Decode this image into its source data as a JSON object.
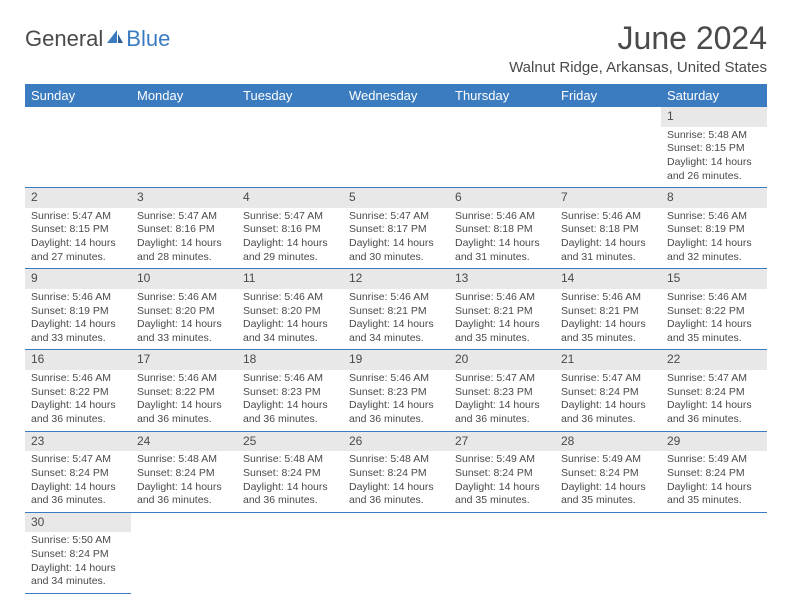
{
  "brand": {
    "part1": "General",
    "part2": "Blue"
  },
  "title": "June 2024",
  "location": "Walnut Ridge, Arkansas, United States",
  "header_color": "#3b7bbf",
  "daynum_bg": "#e8e8e8",
  "weekdays": [
    "Sunday",
    "Monday",
    "Tuesday",
    "Wednesday",
    "Thursday",
    "Friday",
    "Saturday"
  ],
  "weeks": [
    [
      null,
      null,
      null,
      null,
      null,
      null,
      {
        "n": "1",
        "sr": "Sunrise: 5:48 AM",
        "ss": "Sunset: 8:15 PM",
        "dl": "Daylight: 14 hours and 26 minutes."
      }
    ],
    [
      {
        "n": "2",
        "sr": "Sunrise: 5:47 AM",
        "ss": "Sunset: 8:15 PM",
        "dl": "Daylight: 14 hours and 27 minutes."
      },
      {
        "n": "3",
        "sr": "Sunrise: 5:47 AM",
        "ss": "Sunset: 8:16 PM",
        "dl": "Daylight: 14 hours and 28 minutes."
      },
      {
        "n": "4",
        "sr": "Sunrise: 5:47 AM",
        "ss": "Sunset: 8:16 PM",
        "dl": "Daylight: 14 hours and 29 minutes."
      },
      {
        "n": "5",
        "sr": "Sunrise: 5:47 AM",
        "ss": "Sunset: 8:17 PM",
        "dl": "Daylight: 14 hours and 30 minutes."
      },
      {
        "n": "6",
        "sr": "Sunrise: 5:46 AM",
        "ss": "Sunset: 8:18 PM",
        "dl": "Daylight: 14 hours and 31 minutes."
      },
      {
        "n": "7",
        "sr": "Sunrise: 5:46 AM",
        "ss": "Sunset: 8:18 PM",
        "dl": "Daylight: 14 hours and 31 minutes."
      },
      {
        "n": "8",
        "sr": "Sunrise: 5:46 AM",
        "ss": "Sunset: 8:19 PM",
        "dl": "Daylight: 14 hours and 32 minutes."
      }
    ],
    [
      {
        "n": "9",
        "sr": "Sunrise: 5:46 AM",
        "ss": "Sunset: 8:19 PM",
        "dl": "Daylight: 14 hours and 33 minutes."
      },
      {
        "n": "10",
        "sr": "Sunrise: 5:46 AM",
        "ss": "Sunset: 8:20 PM",
        "dl": "Daylight: 14 hours and 33 minutes."
      },
      {
        "n": "11",
        "sr": "Sunrise: 5:46 AM",
        "ss": "Sunset: 8:20 PM",
        "dl": "Daylight: 14 hours and 34 minutes."
      },
      {
        "n": "12",
        "sr": "Sunrise: 5:46 AM",
        "ss": "Sunset: 8:21 PM",
        "dl": "Daylight: 14 hours and 34 minutes."
      },
      {
        "n": "13",
        "sr": "Sunrise: 5:46 AM",
        "ss": "Sunset: 8:21 PM",
        "dl": "Daylight: 14 hours and 35 minutes."
      },
      {
        "n": "14",
        "sr": "Sunrise: 5:46 AM",
        "ss": "Sunset: 8:21 PM",
        "dl": "Daylight: 14 hours and 35 minutes."
      },
      {
        "n": "15",
        "sr": "Sunrise: 5:46 AM",
        "ss": "Sunset: 8:22 PM",
        "dl": "Daylight: 14 hours and 35 minutes."
      }
    ],
    [
      {
        "n": "16",
        "sr": "Sunrise: 5:46 AM",
        "ss": "Sunset: 8:22 PM",
        "dl": "Daylight: 14 hours and 36 minutes."
      },
      {
        "n": "17",
        "sr": "Sunrise: 5:46 AM",
        "ss": "Sunset: 8:22 PM",
        "dl": "Daylight: 14 hours and 36 minutes."
      },
      {
        "n": "18",
        "sr": "Sunrise: 5:46 AM",
        "ss": "Sunset: 8:23 PM",
        "dl": "Daylight: 14 hours and 36 minutes."
      },
      {
        "n": "19",
        "sr": "Sunrise: 5:46 AM",
        "ss": "Sunset: 8:23 PM",
        "dl": "Daylight: 14 hours and 36 minutes."
      },
      {
        "n": "20",
        "sr": "Sunrise: 5:47 AM",
        "ss": "Sunset: 8:23 PM",
        "dl": "Daylight: 14 hours and 36 minutes."
      },
      {
        "n": "21",
        "sr": "Sunrise: 5:47 AM",
        "ss": "Sunset: 8:24 PM",
        "dl": "Daylight: 14 hours and 36 minutes."
      },
      {
        "n": "22",
        "sr": "Sunrise: 5:47 AM",
        "ss": "Sunset: 8:24 PM",
        "dl": "Daylight: 14 hours and 36 minutes."
      }
    ],
    [
      {
        "n": "23",
        "sr": "Sunrise: 5:47 AM",
        "ss": "Sunset: 8:24 PM",
        "dl": "Daylight: 14 hours and 36 minutes."
      },
      {
        "n": "24",
        "sr": "Sunrise: 5:48 AM",
        "ss": "Sunset: 8:24 PM",
        "dl": "Daylight: 14 hours and 36 minutes."
      },
      {
        "n": "25",
        "sr": "Sunrise: 5:48 AM",
        "ss": "Sunset: 8:24 PM",
        "dl": "Daylight: 14 hours and 36 minutes."
      },
      {
        "n": "26",
        "sr": "Sunrise: 5:48 AM",
        "ss": "Sunset: 8:24 PM",
        "dl": "Daylight: 14 hours and 36 minutes."
      },
      {
        "n": "27",
        "sr": "Sunrise: 5:49 AM",
        "ss": "Sunset: 8:24 PM",
        "dl": "Daylight: 14 hours and 35 minutes."
      },
      {
        "n": "28",
        "sr": "Sunrise: 5:49 AM",
        "ss": "Sunset: 8:24 PM",
        "dl": "Daylight: 14 hours and 35 minutes."
      },
      {
        "n": "29",
        "sr": "Sunrise: 5:49 AM",
        "ss": "Sunset: 8:24 PM",
        "dl": "Daylight: 14 hours and 35 minutes."
      }
    ],
    [
      {
        "n": "30",
        "sr": "Sunrise: 5:50 AM",
        "ss": "Sunset: 8:24 PM",
        "dl": "Daylight: 14 hours and 34 minutes."
      },
      null,
      null,
      null,
      null,
      null,
      null
    ]
  ]
}
